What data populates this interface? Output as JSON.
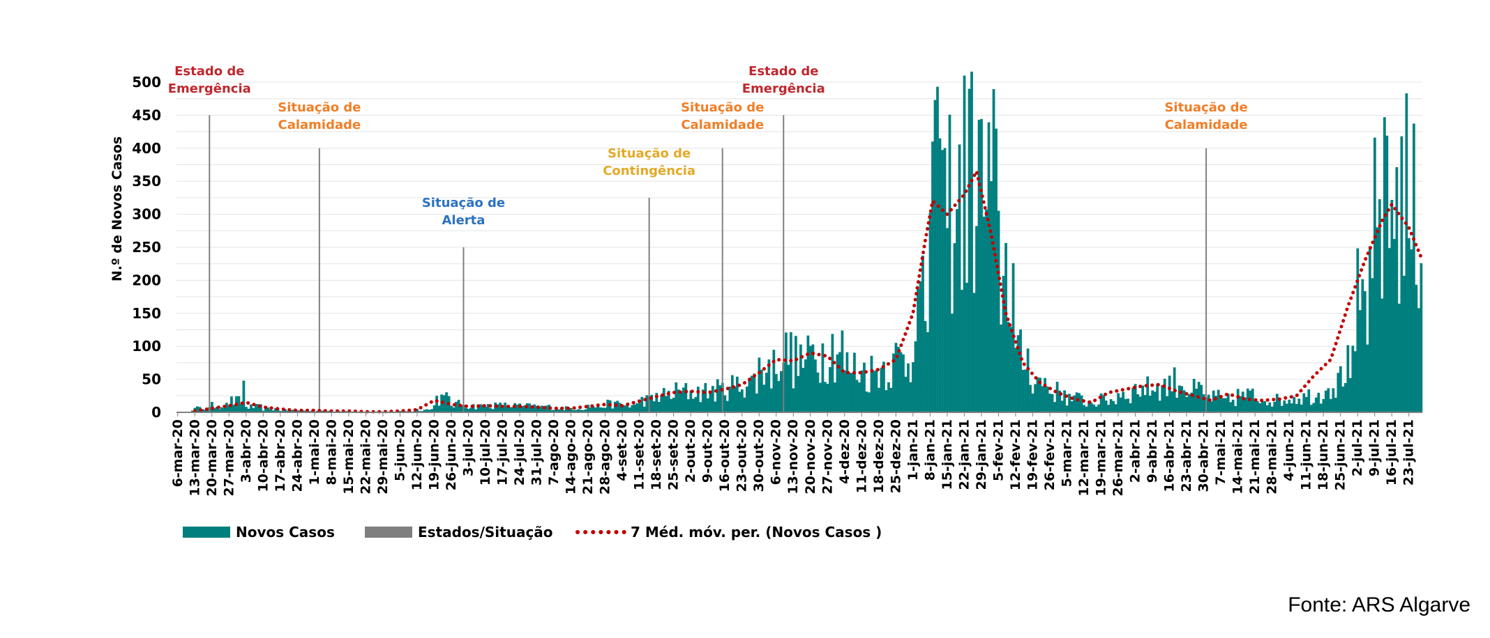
{
  "chart_data": {
    "type": "bar",
    "title": "",
    "xlabel": "",
    "ylabel": "N.º de Novos Casos",
    "ylim": [
      0,
      500
    ],
    "y_ticks": [
      0,
      50,
      100,
      150,
      200,
      250,
      300,
      350,
      400,
      450,
      500
    ],
    "x_start": "2020-03-06",
    "x_end": "2021-07-28",
    "x_tick_labels": [
      "6-mar-20",
      "13-mar-20",
      "20-mar-20",
      "27-mar-20",
      "3-abr-20",
      "10-abr-20",
      "17-abr-20",
      "24-abr-20",
      "1-mai-20",
      "8-mai-20",
      "15-mai-20",
      "22-mai-20",
      "29-mai-20",
      "5-jun-20",
      "12-jun-20",
      "19-jun-20",
      "26-jun-20",
      "3-jul-20",
      "10-jul-20",
      "17-jul-20",
      "24-jul-20",
      "31-jul-20",
      "7-ago-20",
      "14-ago-20",
      "21-ago-20",
      "28-ago-20",
      "4-set-20",
      "11-set-20",
      "18-set-20",
      "25-set-20",
      "2-out-20",
      "9-out-20",
      "16-out-20",
      "23-out-20",
      "30-out-20",
      "6-nov-20",
      "13-nov-20",
      "20-nov-20",
      "27-nov-20",
      "4-dez-20",
      "11-dez-20",
      "18-dez-20",
      "25-dez-20",
      "1-jan-21",
      "8-jan-21",
      "15-jan-21",
      "22-jan-21",
      "29-jan-21",
      "5-fev-21",
      "12-fev-21",
      "19-fev-21",
      "26-fev-21",
      "5-mar-21",
      "12-mar-21",
      "19-mar-21",
      "26-mar-21",
      "2-abr-21",
      "9-abr-21",
      "16-abr-21",
      "23-abr-21",
      "30-abr-21",
      "7-mai-21",
      "14-mai-21",
      "21-mai-21",
      "28-mai-21",
      "4-jun-21",
      "11-jun-21",
      "18-jun-21",
      "25-jun-21",
      "2-jul-21",
      "9-jul-21",
      "16-jul-21",
      "23-jul-21"
    ],
    "series": [
      {
        "name": "Novos Casos",
        "color": "#007f7f",
        "weekly_mean_values": [
          2,
          6,
          10,
          16,
          8,
          5,
          3,
          3,
          2,
          2,
          1,
          1,
          1,
          2,
          4,
          20,
          12,
          9,
          10,
          10,
          9,
          8,
          6,
          6,
          9,
          12,
          10,
          18,
          25,
          30,
          30,
          32,
          38,
          45,
          65,
          85,
          75,
          88,
          95,
          65,
          60,
          68,
          78,
          150,
          310,
          305,
          340,
          320,
          210,
          80,
          45,
          30,
          20,
          15,
          18,
          28,
          35,
          38,
          45,
          32,
          22,
          18,
          25,
          20,
          18,
          22,
          25,
          40,
          65,
          160,
          270,
          320,
          280
        ],
        "peak_values": [
          {
            "x": "2020-04-02",
            "y": 48
          },
          {
            "x": "2021-01-12",
            "y": 415
          },
          {
            "x": "2021-01-24",
            "y": 490
          },
          {
            "x": "2021-07-13",
            "y": 447
          }
        ]
      },
      {
        "name": "Estados/Situação",
        "color": "#7f7f7f",
        "markers": [
          {
            "date": "2020-03-19",
            "value": 450,
            "line1": "Estado de",
            "line2": "Emergência",
            "color": "#c0272d"
          },
          {
            "date": "2020-05-03",
            "value": 400,
            "line1": "Situação de",
            "line2": "Calamidade",
            "color": "#f07e27"
          },
          {
            "date": "2020-07-01",
            "value": 250,
            "line1": "Situação de",
            "line2": "Alerta",
            "color": "#2b72c4"
          },
          {
            "date": "2020-09-15",
            "value": 325,
            "line1": "Situação de",
            "line2": "Contingência",
            "color": "#e3a927"
          },
          {
            "date": "2020-10-15",
            "value": 400,
            "line1": "Situação de",
            "line2": "Calamidade",
            "color": "#f07e27"
          },
          {
            "date": "2020-11-09",
            "value": 450,
            "line1": "Estado de",
            "line2": "Emergência",
            "color": "#c0272d"
          },
          {
            "date": "2021-05-01",
            "value": 400,
            "line1": "Situação de",
            "line2": "Calamidade",
            "color": "#f07e27"
          }
        ]
      },
      {
        "name": "7 Méd. móv. per. (Novos Casos )",
        "color": "#c00000",
        "points": [
          {
            "x": "2020-03-13",
            "y": 2
          },
          {
            "x": "2020-03-20",
            "y": 6
          },
          {
            "x": "2020-03-27",
            "y": 10
          },
          {
            "x": "2020-04-03",
            "y": 15
          },
          {
            "x": "2020-04-10",
            "y": 8
          },
          {
            "x": "2020-04-17",
            "y": 5
          },
          {
            "x": "2020-04-24",
            "y": 3
          },
          {
            "x": "2020-05-01",
            "y": 3
          },
          {
            "x": "2020-05-08",
            "y": 2
          },
          {
            "x": "2020-05-15",
            "y": 2
          },
          {
            "x": "2020-05-22",
            "y": 1
          },
          {
            "x": "2020-05-29",
            "y": 1
          },
          {
            "x": "2020-06-05",
            "y": 2
          },
          {
            "x": "2020-06-12",
            "y": 4
          },
          {
            "x": "2020-06-19",
            "y": 18
          },
          {
            "x": "2020-06-26",
            "y": 12
          },
          {
            "x": "2020-07-03",
            "y": 9
          },
          {
            "x": "2020-07-10",
            "y": 10
          },
          {
            "x": "2020-07-17",
            "y": 9
          },
          {
            "x": "2020-07-24",
            "y": 9
          },
          {
            "x": "2020-07-31",
            "y": 8
          },
          {
            "x": "2020-08-07",
            "y": 6
          },
          {
            "x": "2020-08-14",
            "y": 6
          },
          {
            "x": "2020-08-21",
            "y": 9
          },
          {
            "x": "2020-08-28",
            "y": 12
          },
          {
            "x": "2020-09-04",
            "y": 10
          },
          {
            "x": "2020-09-11",
            "y": 17
          },
          {
            "x": "2020-09-18",
            "y": 24
          },
          {
            "x": "2020-09-25",
            "y": 30
          },
          {
            "x": "2020-10-02",
            "y": 32
          },
          {
            "x": "2020-10-09",
            "y": 30
          },
          {
            "x": "2020-10-16",
            "y": 35
          },
          {
            "x": "2020-10-23",
            "y": 42
          },
          {
            "x": "2020-10-30",
            "y": 60
          },
          {
            "x": "2020-11-06",
            "y": 80
          },
          {
            "x": "2020-11-13",
            "y": 78
          },
          {
            "x": "2020-11-20",
            "y": 90
          },
          {
            "x": "2020-11-27",
            "y": 85
          },
          {
            "x": "2020-12-04",
            "y": 60
          },
          {
            "x": "2020-12-11",
            "y": 60
          },
          {
            "x": "2020-12-18",
            "y": 65
          },
          {
            "x": "2020-12-25",
            "y": 80
          },
          {
            "x": "2021-01-01",
            "y": 150
          },
          {
            "x": "2021-01-06",
            "y": 260
          },
          {
            "x": "2021-01-09",
            "y": 320
          },
          {
            "x": "2021-01-15",
            "y": 300
          },
          {
            "x": "2021-01-22",
            "y": 330
          },
          {
            "x": "2021-01-27",
            "y": 365
          },
          {
            "x": "2021-02-02",
            "y": 270
          },
          {
            "x": "2021-02-08",
            "y": 150
          },
          {
            "x": "2021-02-15",
            "y": 75
          },
          {
            "x": "2021-02-22",
            "y": 45
          },
          {
            "x": "2021-03-01",
            "y": 30
          },
          {
            "x": "2021-03-08",
            "y": 20
          },
          {
            "x": "2021-03-15",
            "y": 15
          },
          {
            "x": "2021-03-22",
            "y": 30
          },
          {
            "x": "2021-03-29",
            "y": 35
          },
          {
            "x": "2021-04-05",
            "y": 40
          },
          {
            "x": "2021-04-12",
            "y": 42
          },
          {
            "x": "2021-04-19",
            "y": 32
          },
          {
            "x": "2021-04-26",
            "y": 25
          },
          {
            "x": "2021-05-03",
            "y": 18
          },
          {
            "x": "2021-05-10",
            "y": 28
          },
          {
            "x": "2021-05-17",
            "y": 20
          },
          {
            "x": "2021-05-24",
            "y": 18
          },
          {
            "x": "2021-05-31",
            "y": 20
          },
          {
            "x": "2021-06-07",
            "y": 25
          },
          {
            "x": "2021-06-14",
            "y": 55
          },
          {
            "x": "2021-06-21",
            "y": 80
          },
          {
            "x": "2021-06-28",
            "y": 160
          },
          {
            "x": "2021-07-05",
            "y": 230
          },
          {
            "x": "2021-07-12",
            "y": 290
          },
          {
            "x": "2021-07-16",
            "y": 315
          },
          {
            "x": "2021-07-23",
            "y": 280
          },
          {
            "x": "2021-07-28",
            "y": 235
          }
        ]
      }
    ],
    "legend_position": "bottom-left",
    "grid": true
  },
  "source_label": "Fonte: ARS Algarve"
}
